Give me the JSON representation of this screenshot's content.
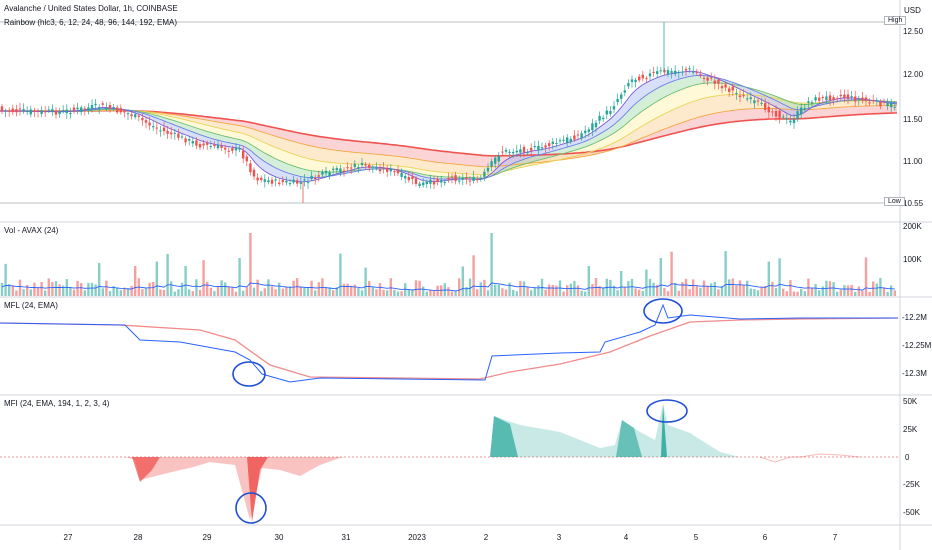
{
  "header": {
    "title": "Avalanche / United States Dollar, 1h, COINBASE",
    "currency": "USD",
    "indicator": "Rainbow (hlc3, 6, 12, 24, 48, 96, 144, 192, EMA)"
  },
  "markers": {
    "high": "High",
    "low": "Low",
    "low_value": "10.55"
  },
  "panes": {
    "volume_title": "Vol - AVAX (24)",
    "mfl_title": "MFL (24, EMA)",
    "mfi_title": "MFI (24, EMA, 194, 1, 2, 3, 4)"
  },
  "colors": {
    "up": "#26a69a",
    "down": "#ef5350",
    "blue_line": "#2962ff",
    "red_line": "#f28b8b",
    "band_red": "#f7a1a1",
    "band_orange": "#fbd08f",
    "band_yellow": "#fff2a8",
    "band_green": "#9fd9a8",
    "band_blue": "#a9b8f7",
    "circle": "#1e4fd6"
  },
  "chart_data": [
    {
      "type": "candlestick",
      "x_ticks": [
        "27",
        "28",
        "29",
        "30",
        "31",
        "2023",
        "2",
        "3",
        "4",
        "5",
        "6",
        "7"
      ],
      "y_ticks": [
        "12.50",
        "12.00",
        "11.50",
        "11.00"
      ],
      "ylim": [
        10.5,
        12.6
      ],
      "key_points": {
        "x": [
          "26",
          "27",
          "28",
          "28.5",
          "29",
          "29.5",
          "29.7",
          "30",
          "31",
          "1",
          "2",
          "2.5",
          "3",
          "3.5",
          "4",
          "4.5",
          "5",
          "5.5",
          "6",
          "6.3",
          "6.7",
          "7",
          "7.5",
          "8"
        ],
        "close": [
          11.72,
          11.7,
          11.62,
          11.4,
          11.25,
          11.2,
          10.75,
          10.85,
          11.0,
          10.8,
          10.95,
          11.35,
          11.45,
          11.6,
          11.9,
          12.05,
          12.0,
          11.85,
          11.65,
          11.5,
          11.75,
          11.8,
          11.72,
          11.65
        ]
      }
    },
    {
      "type": "bar",
      "y_ticks": [
        "200K",
        "100K"
      ],
      "ylim": [
        0,
        210000
      ]
    },
    {
      "type": "line",
      "y_ticks": [
        "-12.2M",
        "-12.25M",
        "-12.3M"
      ],
      "ylim": [
        -12.32,
        -12.18
      ]
    },
    {
      "type": "area",
      "y_ticks": [
        "50K",
        "25K",
        "0",
        "-25K",
        "-50K"
      ],
      "ylim": [
        -55000,
        55000
      ]
    }
  ]
}
